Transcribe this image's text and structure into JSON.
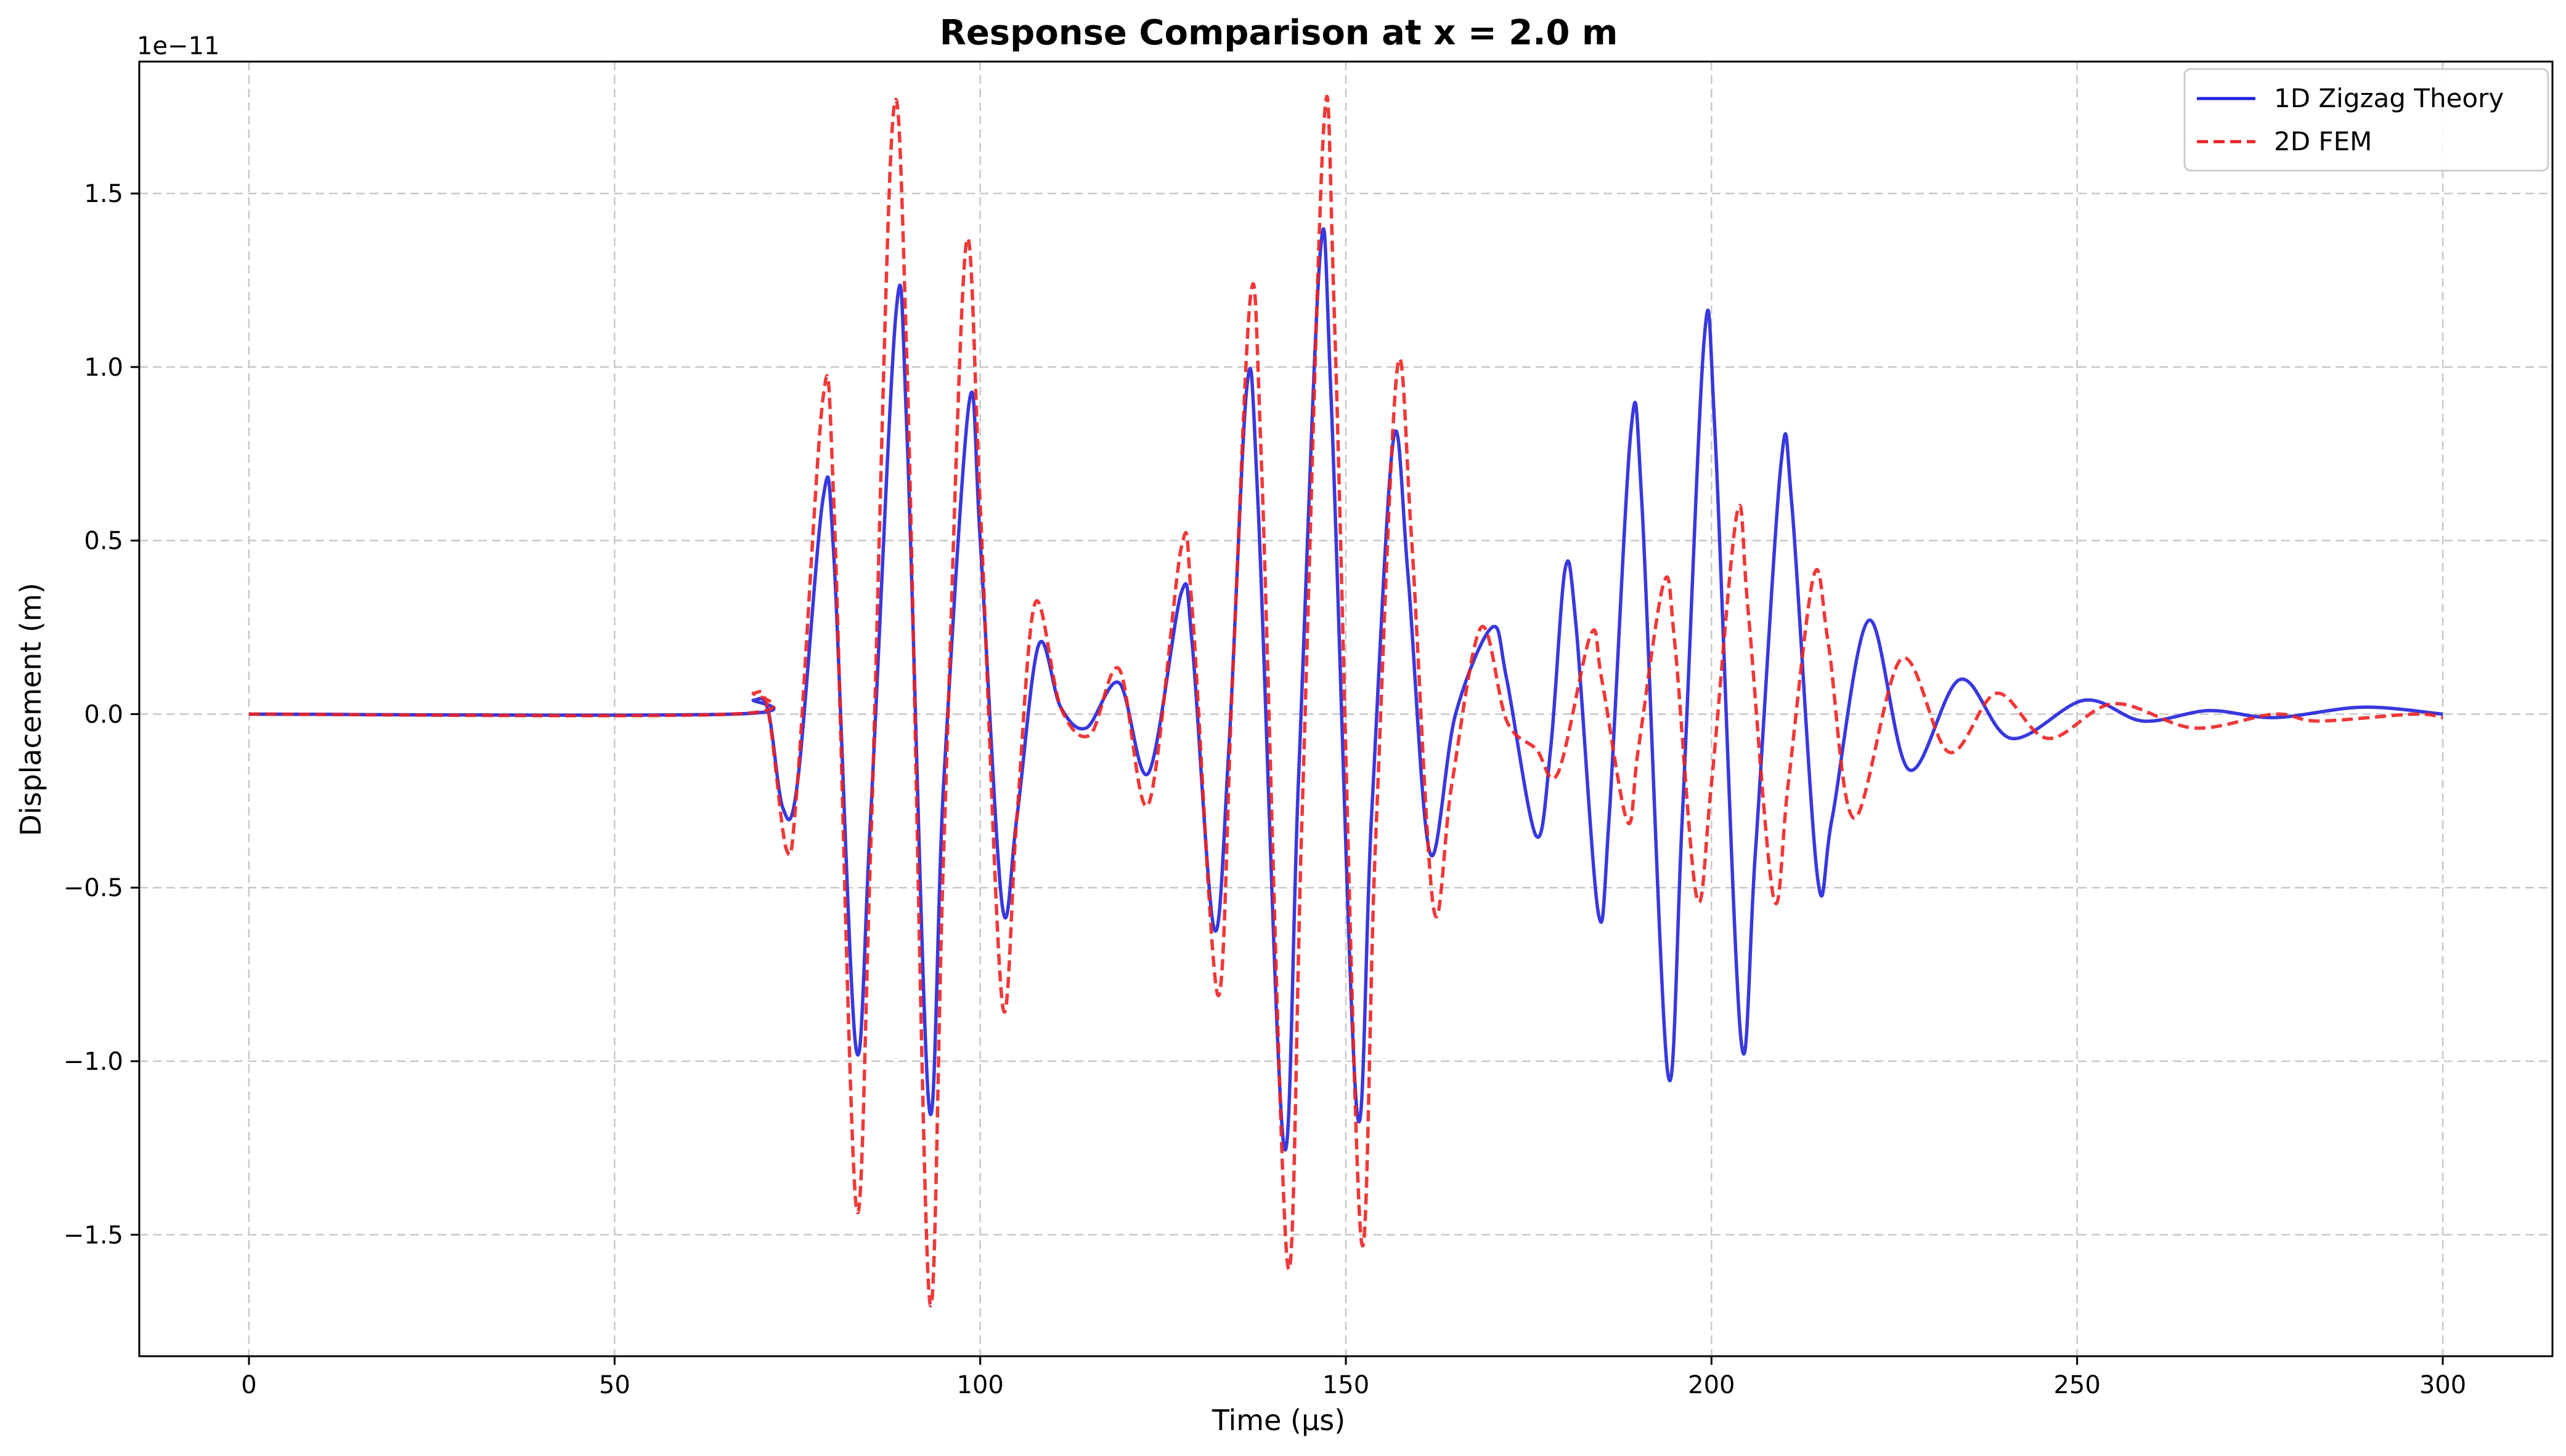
{
  "chart_data": {
    "type": "line",
    "title": "Response Comparison at x = 2.0 m",
    "xlabel": "Time (μs)",
    "ylabel": "Displacement (m)",
    "y_offset_label": "1e−11",
    "xlim": [
      -15,
      315
    ],
    "ylim": [
      -1.85,
      1.88
    ],
    "x_ticks": [
      0,
      50,
      100,
      150,
      200,
      250,
      300
    ],
    "x_tick_labels": [
      "0",
      "50",
      "100",
      "150",
      "200",
      "250",
      "300"
    ],
    "y_ticks": [
      -1.5,
      -1.0,
      -0.5,
      0.0,
      0.5,
      1.0,
      1.5
    ],
    "y_tick_labels": [
      "−1.5",
      "−1.0",
      "−0.5",
      "0.0",
      "0.5",
      "1.0",
      "1.5"
    ],
    "grid": true,
    "legend_position": "top-right",
    "series": [
      {
        "name": "1D Zigzag Theory",
        "color": "#2222dd",
        "style": "solid",
        "points": [
          [
            0,
            0
          ],
          [
            66,
            0
          ],
          [
            69,
            0.04
          ],
          [
            71,
            0.01
          ],
          [
            73,
            -0.27
          ],
          [
            75,
            -0.2
          ],
          [
            78.5,
            0.62
          ],
          [
            80,
            0.45
          ],
          [
            83,
            -0.96
          ],
          [
            85,
            -0.3
          ],
          [
            88.5,
            1.16
          ],
          [
            90,
            0.8
          ],
          [
            93,
            -1.13
          ],
          [
            95,
            -0.2
          ],
          [
            98.5,
            0.9
          ],
          [
            100,
            0.5
          ],
          [
            103,
            -0.55
          ],
          [
            105,
            -0.3
          ],
          [
            108,
            0.2
          ],
          [
            111,
            0.02
          ],
          [
            114.5,
            -0.04
          ],
          [
            119,
            0.09
          ],
          [
            123,
            -0.17
          ],
          [
            127.5,
            0.35
          ],
          [
            129,
            0.2
          ],
          [
            132,
            -0.62
          ],
          [
            134,
            -0.1
          ],
          [
            136.5,
            0.95
          ],
          [
            138,
            0.6
          ],
          [
            141.5,
            -1.24
          ],
          [
            143.5,
            -0.2
          ],
          [
            146.5,
            1.33
          ],
          [
            148,
            0.9
          ],
          [
            151.5,
            -1.14
          ],
          [
            153.5,
            -0.3
          ],
          [
            156.5,
            0.79
          ],
          [
            158.5,
            0.4
          ],
          [
            161.5,
            -0.4
          ],
          [
            165,
            0.0
          ],
          [
            170,
            0.25
          ],
          [
            172,
            0.1
          ],
          [
            176,
            -0.35
          ],
          [
            178,
            -0.1
          ],
          [
            180,
            0.42
          ],
          [
            181.5,
            0.25
          ],
          [
            184.5,
            -0.57
          ],
          [
            186,
            -0.3
          ],
          [
            189,
            0.82
          ],
          [
            190.5,
            0.6
          ],
          [
            194,
            -1.03
          ],
          [
            196,
            -0.3
          ],
          [
            199,
            1.08
          ],
          [
            200.5,
            0.8
          ],
          [
            204,
            -0.93
          ],
          [
            206,
            -0.4
          ],
          [
            209.5,
            0.72
          ],
          [
            211,
            0.6
          ],
          [
            214.5,
            -0.47
          ],
          [
            216.5,
            -0.3
          ],
          [
            221.5,
            0.27
          ],
          [
            227,
            -0.16
          ],
          [
            234,
            0.1
          ],
          [
            241,
            -0.07
          ],
          [
            251,
            0.04
          ],
          [
            259,
            -0.02
          ],
          [
            268,
            0.01
          ],
          [
            277,
            -0.01
          ],
          [
            289,
            0.02
          ],
          [
            300,
            0.0
          ]
        ]
      },
      {
        "name": "2D FEM",
        "color": "#ee2222",
        "style": "dashed",
        "points": [
          [
            0,
            0
          ],
          [
            66,
            0
          ],
          [
            69,
            0.06
          ],
          [
            71,
            0.01
          ],
          [
            73.5,
            -0.39
          ],
          [
            75,
            -0.2
          ],
          [
            78.5,
            0.91
          ],
          [
            80,
            0.6
          ],
          [
            83,
            -1.41
          ],
          [
            85,
            -0.4
          ],
          [
            88,
            1.7
          ],
          [
            90,
            1.0
          ],
          [
            93,
            -1.67
          ],
          [
            95,
            -0.4
          ],
          [
            98,
            1.34
          ],
          [
            100,
            0.6
          ],
          [
            103,
            -0.83
          ],
          [
            105,
            -0.3
          ],
          [
            107.5,
            0.32
          ],
          [
            111,
            0.02
          ],
          [
            115,
            -0.06
          ],
          [
            119,
            0.13
          ],
          [
            123,
            -0.26
          ],
          [
            127.5,
            0.48
          ],
          [
            129,
            0.3
          ],
          [
            132.5,
            -0.81
          ],
          [
            134.5,
            0.1
          ],
          [
            137,
            1.21
          ],
          [
            138.5,
            0.7
          ],
          [
            142,
            -1.58
          ],
          [
            144,
            -0.3
          ],
          [
            147,
            1.7
          ],
          [
            148.5,
            1.1
          ],
          [
            152,
            -1.49
          ],
          [
            154,
            -0.4
          ],
          [
            157,
            0.99
          ],
          [
            159,
            0.5
          ],
          [
            162,
            -0.56
          ],
          [
            164.5,
            -0.2
          ],
          [
            168.5,
            0.25
          ],
          [
            172,
            -0.02
          ],
          [
            176,
            -0.1
          ],
          [
            179,
            -0.17
          ],
          [
            183.5,
            0.23
          ],
          [
            185,
            0.1
          ],
          [
            188.5,
            -0.31
          ],
          [
            190,
            -0.1
          ],
          [
            193.5,
            0.38
          ],
          [
            195,
            0.2
          ],
          [
            198,
            -0.53
          ],
          [
            200,
            -0.2
          ],
          [
            203.5,
            0.58
          ],
          [
            205,
            0.3
          ],
          [
            208.5,
            -0.53
          ],
          [
            210.5,
            -0.2
          ],
          [
            214,
            0.4
          ],
          [
            216,
            0.2
          ],
          [
            219.5,
            -0.3
          ],
          [
            226,
            0.16
          ],
          [
            232.5,
            -0.11
          ],
          [
            239,
            0.06
          ],
          [
            246,
            -0.07
          ],
          [
            255,
            0.03
          ],
          [
            266,
            -0.04
          ],
          [
            277,
            0.0
          ],
          [
            283,
            -0.02
          ],
          [
            296,
            0.0
          ],
          [
            300,
            -0.01
          ]
        ]
      }
    ]
  }
}
